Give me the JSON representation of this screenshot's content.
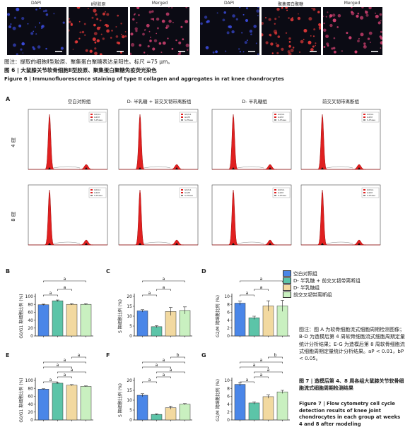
{
  "figure6": {
    "panels": [
      {
        "label": "DAPI",
        "color": "#3a4ad8"
      },
      {
        "label": "Ⅱ型胶原",
        "color": "#e03838"
      },
      {
        "label": "Merged",
        "color": "#d04070"
      },
      {
        "label": "DAPI",
        "color": "#3a4ad8"
      },
      {
        "label": "聚集蛋白聚糖",
        "color": "#e03838"
      },
      {
        "label": "Merged",
        "color": "#d04070"
      }
    ],
    "note": "图注：提取的细胞Ⅱ型胶原、聚集蛋白聚糖表达呈阳性。标尺 =75 μm。",
    "title_cn": "图 6 | 大鼠膝关节软骨细胞Ⅱ型胶原、聚集蛋白聚糖免疫荧光染色",
    "title_en": "Figure 6 | Immunofluorescence staining of type II collagen and aggregates in rat knee chondrocytes"
  },
  "figure7": {
    "panel_a_letter": "A",
    "column_titles": [
      "空白对照组",
      "D- 半乳糖 + 前交叉韧带离断组",
      "D- 半乳糖组",
      "前交叉韧带离断组"
    ],
    "row_labels": [
      "4 周",
      "8 周"
    ],
    "flow_legend": [
      "G0/G1",
      "G2/M",
      "S-Phase"
    ],
    "groups": [
      {
        "name": "空白对照组",
        "color": "#4a86e8"
      },
      {
        "name": "D- 半乳糖 + 前交叉韧带离断组",
        "color": "#5cc4a8"
      },
      {
        "name": "D- 半乳糖组",
        "color": "#f2d9a0"
      },
      {
        "name": "前交叉韧带离断组",
        "color": "#c9f0c0"
      }
    ],
    "caption_cn": "图注：图 A 为软骨细胞流式细胞周期检测图像；B-D 为造模后第 4 周软骨细胞流式细胞周期定量统计分析结果；E-G 为造模后第 8 周软骨细胞流式细胞周期定量统计分析结果。aP < 0.01，bP < 0.05。",
    "caption_title_cn": "图 7 | 造模后第 4、8 周各组大鼠膝关节软骨细胞流式细胞周期检测结果",
    "caption_en": "Figure 7 | Flow cytometry cell cycle detection results of knee joint chondrocytes in each group at weeks 4 and 8 after modeling"
  },
  "chart_data": [
    {
      "type": "bar",
      "panel": "B",
      "ylabel": "G0/G1 期细胞比例 (%)",
      "ylim": [
        0,
        100
      ],
      "yticks": [
        0,
        20,
        40,
        60,
        80,
        100
      ],
      "values": [
        79,
        89,
        80,
        80
      ],
      "errors": [
        1.5,
        2,
        1.5,
        1.5
      ],
      "sig": [
        "a",
        "a",
        "a"
      ]
    },
    {
      "type": "bar",
      "panel": "C",
      "ylabel": "S 期细胞比例 (%)",
      "ylim": [
        0,
        20
      ],
      "yticks": [
        0,
        5,
        10,
        15,
        20
      ],
      "values": [
        12.7,
        4.7,
        12.4,
        12.9
      ],
      "errors": [
        0.6,
        0.5,
        2,
        1.8
      ],
      "sig": [
        "a",
        "a",
        "a"
      ]
    },
    {
      "type": "bar",
      "panel": "D",
      "ylabel": "G2/M 期细胞比例 (%)",
      "ylim": [
        0,
        10
      ],
      "yticks": [
        0,
        2,
        4,
        6,
        8,
        10
      ],
      "values": [
        8.3,
        4.6,
        7.6,
        7.6
      ],
      "errors": [
        0.5,
        0.4,
        1.3,
        1.4
      ],
      "sig": [
        "a",
        "a",
        "a"
      ]
    },
    {
      "type": "bar",
      "panel": "E",
      "ylabel": "G0/G1 期细胞比例 (%)",
      "ylim": [
        0,
        100
      ],
      "yticks": [
        0,
        20,
        40,
        60,
        80,
        100
      ],
      "values": [
        78,
        93,
        88,
        85
      ],
      "errors": [
        1,
        1,
        1.5,
        1
      ],
      "sig": [
        "a",
        "a",
        "a",
        "a",
        "a",
        "a"
      ]
    },
    {
      "type": "bar",
      "panel": "F",
      "ylabel": "S 期细胞比例 (%)",
      "ylim": [
        0,
        20
      ],
      "yticks": [
        0,
        5,
        10,
        15,
        20
      ],
      "values": [
        12.5,
        2.8,
        6.2,
        8.0
      ],
      "errors": [
        0.8,
        0.3,
        0.8,
        0.3
      ],
      "sig": [
        "a",
        "a",
        "a",
        "a",
        "a",
        "b"
      ]
    },
    {
      "type": "bar",
      "panel": "G",
      "ylabel": "G2/M 期细胞比例 (%)",
      "ylim": [
        0,
        10
      ],
      "yticks": [
        0,
        2,
        4,
        6,
        8,
        10
      ],
      "values": [
        9.0,
        4.3,
        5.9,
        7.1
      ],
      "errors": [
        0.4,
        0.3,
        0.4,
        0.4
      ],
      "sig": [
        "a",
        "a",
        "a",
        "a",
        "a",
        "b"
      ]
    }
  ]
}
